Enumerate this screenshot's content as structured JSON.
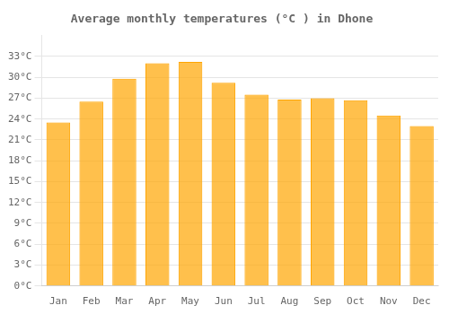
{
  "chart_data": {
    "type": "bar",
    "title": "Average monthly temperatures (°C ) in Dhone",
    "categories": [
      "Jan",
      "Feb",
      "Mar",
      "Apr",
      "May",
      "Jun",
      "Jul",
      "Aug",
      "Sep",
      "Oct",
      "Nov",
      "Dec"
    ],
    "values": [
      23.5,
      26.5,
      29.8,
      32.0,
      32.2,
      29.2,
      27.5,
      26.8,
      27.0,
      26.7,
      24.5,
      23.0
    ],
    "color": "#FFA500",
    "ylim": [
      0,
      36
    ],
    "yticks": [
      {
        "value": 0,
        "label": "0°C"
      },
      {
        "value": 3,
        "label": "3°C"
      },
      {
        "value": 6,
        "label": "6°C"
      },
      {
        "value": 9,
        "label": "9°C"
      },
      {
        "value": 12,
        "label": "12°C"
      },
      {
        "value": 15,
        "label": "15°C"
      },
      {
        "value": 18,
        "label": "18°C"
      },
      {
        "value": 21,
        "label": "21°C"
      },
      {
        "value": 24,
        "label": "24°C"
      },
      {
        "value": 27,
        "label": "27°C"
      },
      {
        "value": 30,
        "label": "30°C"
      },
      {
        "value": 33,
        "label": "33°C"
      }
    ],
    "grid": true
  }
}
